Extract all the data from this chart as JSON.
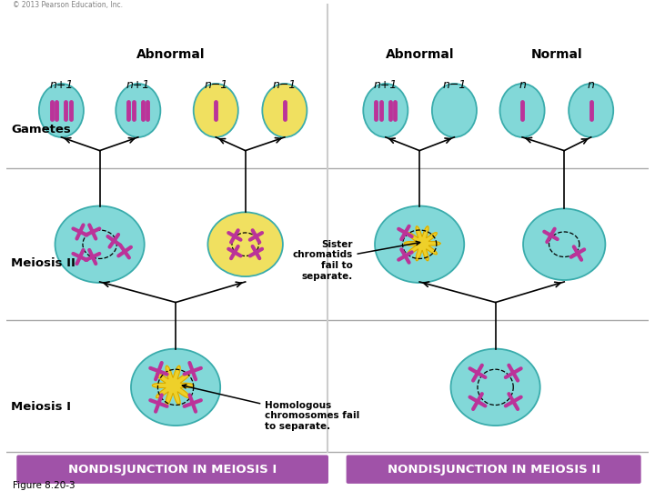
{
  "figure_label": "Figure 8.20-3",
  "header_left": "NONDISJUNCTION IN MEIOSIS I",
  "header_right": "NONDISJUNCTION IN MEIOSIS II",
  "header_bg": "#A052A8",
  "header_text_color": "#FFFFFF",
  "row_labels": [
    "Meiosis I",
    "Meiosis II",
    "Gametes"
  ],
  "annotation1_text": "Homologous\nchromosomes fail\nto separate.",
  "annotation2_text": "Sister\nchromatids\nfail to\nseparate.",
  "gamete_labels_left": [
    "n+1",
    "n+1",
    "n−1",
    "n−1"
  ],
  "gamete_labels_right": [
    "n+1",
    "n−1",
    "n",
    "n"
  ],
  "abnormal_label": "Abnormal",
  "normal_label": "Normal",
  "cell_color_teal": "#82D8D8",
  "cell_color_yellow": "#F0E060",
  "cell_outline": "#4AACAC",
  "chrom_color": "#BB3399",
  "background": "#FFFFFF",
  "copyright": "© 2013 Pearson Education, Inc."
}
